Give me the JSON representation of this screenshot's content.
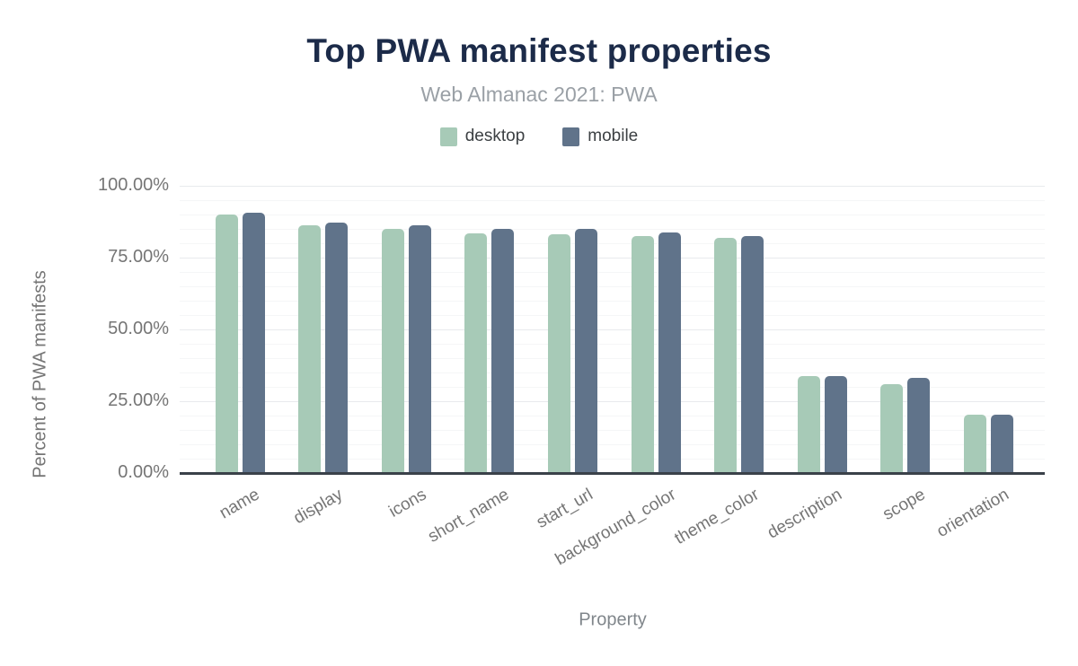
{
  "chart_data": {
    "type": "bar",
    "title": "Top PWA manifest properties",
    "subtitle": "Web Almanac 2021: PWA",
    "categories": [
      "name",
      "display",
      "icons",
      "short_name",
      "start_url",
      "background_color",
      "theme_color",
      "description",
      "scope",
      "orientation"
    ],
    "series": [
      {
        "name": "desktop",
        "color": "#a7cab7",
        "values": [
          89.9,
          86.1,
          84.9,
          83.4,
          83.0,
          82.6,
          81.9,
          33.8,
          30.8,
          20.3
        ]
      },
      {
        "name": "mobile",
        "color": "#60738a",
        "values": [
          90.5,
          87.3,
          86.4,
          84.9,
          85.0,
          83.8,
          82.4,
          33.9,
          33.1,
          20.2
        ]
      }
    ],
    "xlabel": "Property",
    "ylabel": "Percent of PWA manifests",
    "ylim": [
      0,
      100
    ],
    "y_tick_labels": [
      "0.00%",
      "25.00%",
      "50.00%",
      "75.00%",
      "100.00%"
    ],
    "y_major_step": 25,
    "y_minor_step": 5,
    "grid": true,
    "legend_position": "top"
  },
  "colors": {
    "title": "#1c2b49",
    "subtitle": "#9aa0a6",
    "axis_label": "#757575",
    "axis_line": "#3a4149",
    "grid_major": "#e8eaed",
    "grid_minor": "#f5f6f7",
    "background": "#ffffff"
  }
}
